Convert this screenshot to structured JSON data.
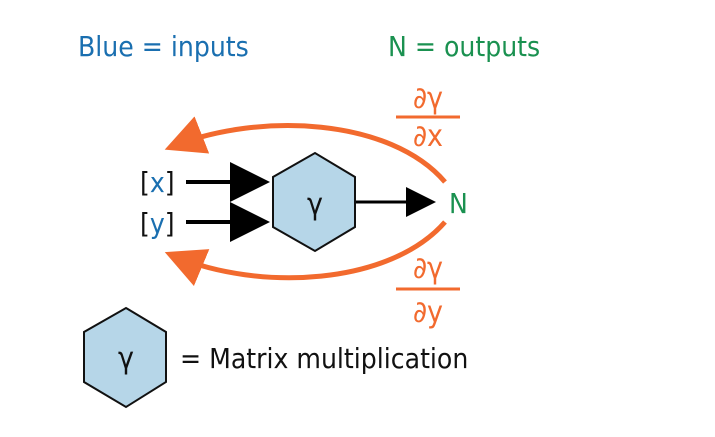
{
  "legend": {
    "inputs": "Blue = inputs",
    "outputs": "N = outputs",
    "matrix_mult": "= Matrix multiplication"
  },
  "inputs": {
    "x_open": "[",
    "x_var": "x",
    "x_close": "]",
    "y_open": "[",
    "y_var": "y",
    "y_close": "]"
  },
  "node": {
    "symbol": "γ",
    "legend_symbol": "γ"
  },
  "output": {
    "label": "N"
  },
  "gradients": {
    "dx_num": "∂γ",
    "dx_den": "∂x",
    "dy_num": "∂γ",
    "dy_den": "∂y"
  },
  "colors": {
    "input_blue": "#1a6fb0",
    "output_green": "#1a9150",
    "gradient_orange": "#f26a2e",
    "hex_fill": "#b6d6e8",
    "ink": "#111111"
  }
}
